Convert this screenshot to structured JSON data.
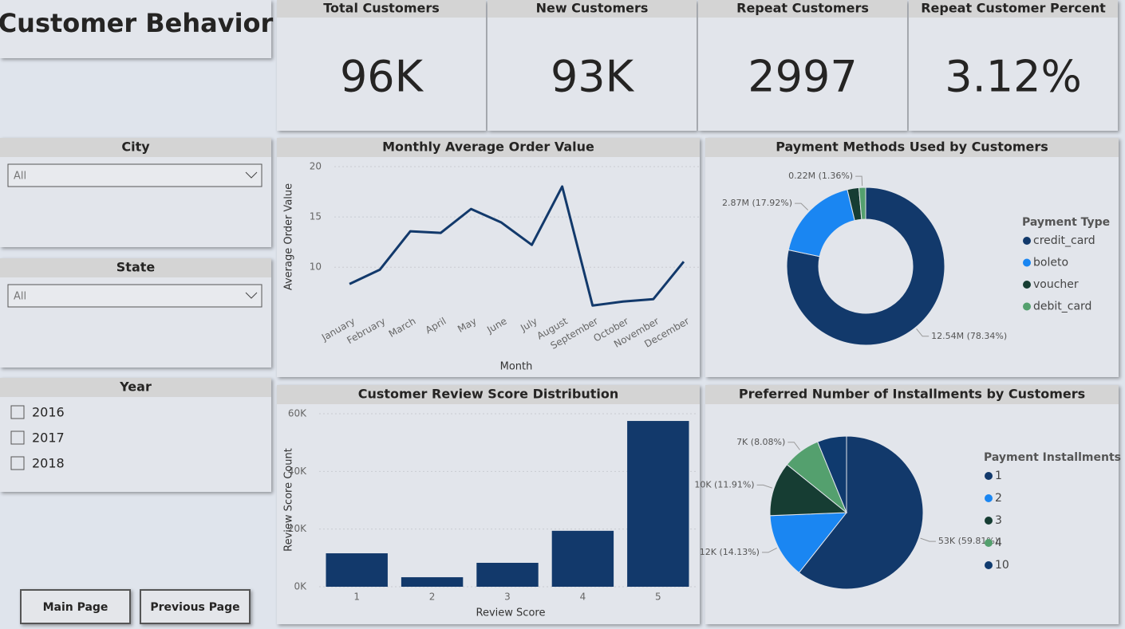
{
  "header": {
    "title": "Customer Behavior"
  },
  "kpis": [
    {
      "title": "Total Customers",
      "value": "96K"
    },
    {
      "title": "New Customers",
      "value": "93K"
    },
    {
      "title": "Repeat Customers",
      "value": "2997"
    },
    {
      "title": "Repeat Customer Percent",
      "value": "3.12%"
    }
  ],
  "slicers": {
    "city": {
      "title": "City",
      "selection": "All"
    },
    "state": {
      "title": "State",
      "selection": "All"
    },
    "year": {
      "title": "Year",
      "options": [
        "2016",
        "2017",
        "2018"
      ]
    }
  },
  "buttons": [
    "Main Page",
    "Previous Page"
  ],
  "chart_data": [
    {
      "type": "line",
      "title": "Monthly Average Order Value",
      "x_label": "Month",
      "y_label": "Average Order Value",
      "categories": [
        "January",
        "February",
        "March",
        "April",
        "May",
        "June",
        "July",
        "August",
        "September",
        "October",
        "November",
        "December"
      ],
      "values": [
        8.33,
        9.76,
        13.57,
        13.41,
        15.79,
        14.44,
        12.22,
        18.02,
        6.19,
        6.59,
        6.83,
        10.56
      ],
      "color": "#12396b",
      "ylim": [
        5.5,
        20
      ],
      "yticks": [
        10,
        15,
        20
      ],
      "grid": true
    },
    {
      "type": "donut",
      "title": "Payment Methods Used by Customers",
      "legend_title": "Payment Type",
      "legend": "right",
      "categories": [
        "credit_card",
        "boleto",
        "voucher",
        "debit_card"
      ],
      "values": [
        12540000,
        2870000,
        380000,
        220000
      ],
      "value_labels": [
        "12.54M (78.34%)",
        "2.87M (17.92%)",
        null,
        "0.22M (1.36%)"
      ],
      "colors": [
        "#12396b",
        "#1a86f2",
        "#163d33",
        "#54a06e"
      ]
    },
    {
      "type": "bar",
      "title": "Customer Review Score Distribution",
      "x_label": "Review Score",
      "y_label": "Review Score Count",
      "categories": [
        "1",
        "2",
        "3",
        "4",
        "5"
      ],
      "values": [
        11600,
        3300,
        8300,
        19400,
        57500
      ],
      "color": "#12396b",
      "ylim": [
        0,
        60000
      ],
      "yticks": [
        {
          "value": 0,
          "label": "0K"
        },
        {
          "value": 20000,
          "label": "20K"
        },
        {
          "value": 40000,
          "label": "40K"
        },
        {
          "value": 60000,
          "label": "60K"
        }
      ],
      "grid": true
    },
    {
      "type": "pie",
      "title": "Preferred Number of Installments by Customers",
      "legend_title": "Payment Installments",
      "legend": "right",
      "categories": [
        "1",
        "2",
        "3",
        "4",
        "10"
      ],
      "values": [
        53000,
        12000,
        10000,
        7000,
        5400
      ],
      "value_labels": [
        "53K (59.81%)",
        "12K (14.13%)",
        "10K (11.91%)",
        "7K (8.08%)",
        null
      ],
      "colors": [
        "#12396b",
        "#1a86f2",
        "#163d33",
        "#54a06e",
        "#0f3a6e"
      ]
    }
  ]
}
